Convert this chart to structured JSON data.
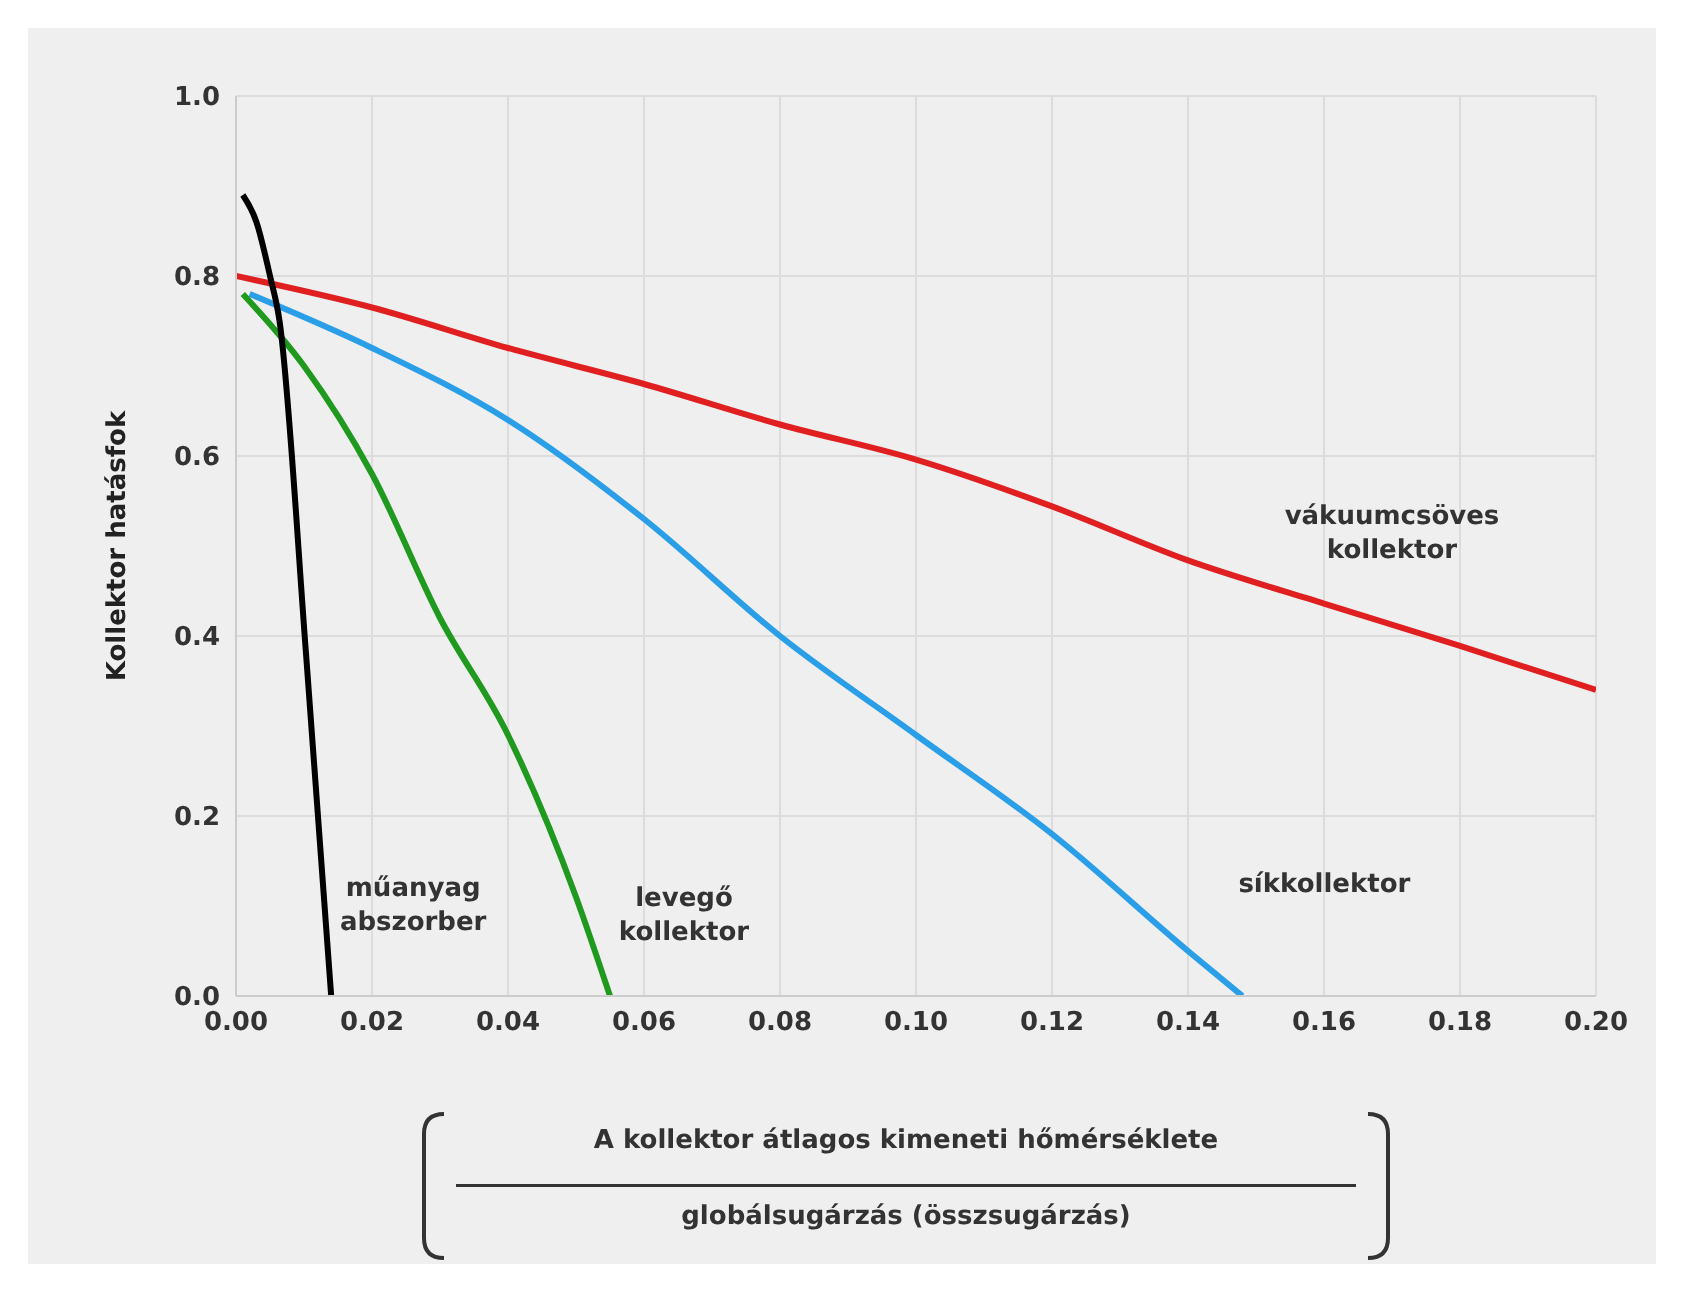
{
  "chart_data": {
    "type": "line",
    "xlabel": "A kollektor átlagos kimeneti hőmérséklete\nglobálsugárzás (összsugárzás)",
    "ylabel": "Kollektor hatásfok",
    "series": [
      {
        "name": "vákuumcsöves\nkollektor",
        "color": "#e02020",
        "x": [
          0,
          0.02,
          0.04,
          0.06,
          0.08,
          0.1,
          0.12,
          0.14,
          0.16,
          0.18,
          0.2
        ],
        "values": [
          0.8,
          0.765,
          0.72,
          0.68,
          0.635,
          0.596,
          0.544,
          0.484,
          0.436,
          0.389,
          0.34
        ]
      },
      {
        "name": "síkkollektor",
        "color": "#2a9fe8",
        "x": [
          0.002,
          0.02,
          0.04,
          0.06,
          0.08,
          0.1,
          0.12,
          0.14,
          0.148
        ],
        "values": [
          0.78,
          0.72,
          0.64,
          0.53,
          0.4,
          0.29,
          0.18,
          0.05,
          0
        ]
      },
      {
        "name": "levegő\nkollektor",
        "color": "#1f9a1f",
        "x": [
          0.001,
          0.01,
          0.02,
          0.03,
          0.04,
          0.05,
          0.055
        ],
        "values": [
          0.78,
          0.7,
          0.58,
          0.42,
          0.29,
          0.11,
          0
        ]
      },
      {
        "name": "műanyag\nabszorber",
        "color": "#000000",
        "x": [
          0.001,
          0.003,
          0.005,
          0.0064,
          0.0103,
          0.014
        ],
        "values": [
          0.89,
          0.86,
          0.8,
          0.75,
          0.38,
          0
        ]
      }
    ],
    "xlim": [
      0,
      0.2
    ],
    "xticks": [
      {
        "value": 0,
        "label": "0.00"
      },
      {
        "value": 0.02,
        "label": "0.02"
      },
      {
        "value": 0.04,
        "label": "0.04"
      },
      {
        "value": 0.06,
        "label": "0.06"
      },
      {
        "value": 0.08,
        "label": "0.08"
      },
      {
        "value": 0.1,
        "label": "0.10"
      },
      {
        "value": 0.12,
        "label": "0.12"
      },
      {
        "value": 0.14,
        "label": "0.14"
      },
      {
        "value": 0.16,
        "label": "0.16"
      },
      {
        "value": 0.18,
        "label": "0.18"
      },
      {
        "value": 0.2,
        "label": "0.20"
      }
    ],
    "ylim": [
      0,
      1
    ],
    "yticks": [
      {
        "value": 0,
        "label": "0.0"
      },
      0.2,
      0.4,
      0.6,
      0.8,
      {
        "value": 1,
        "label": "1.0"
      }
    ],
    "grid": true,
    "marker": "none",
    "line_style": "solid",
    "legend": false
  }
}
